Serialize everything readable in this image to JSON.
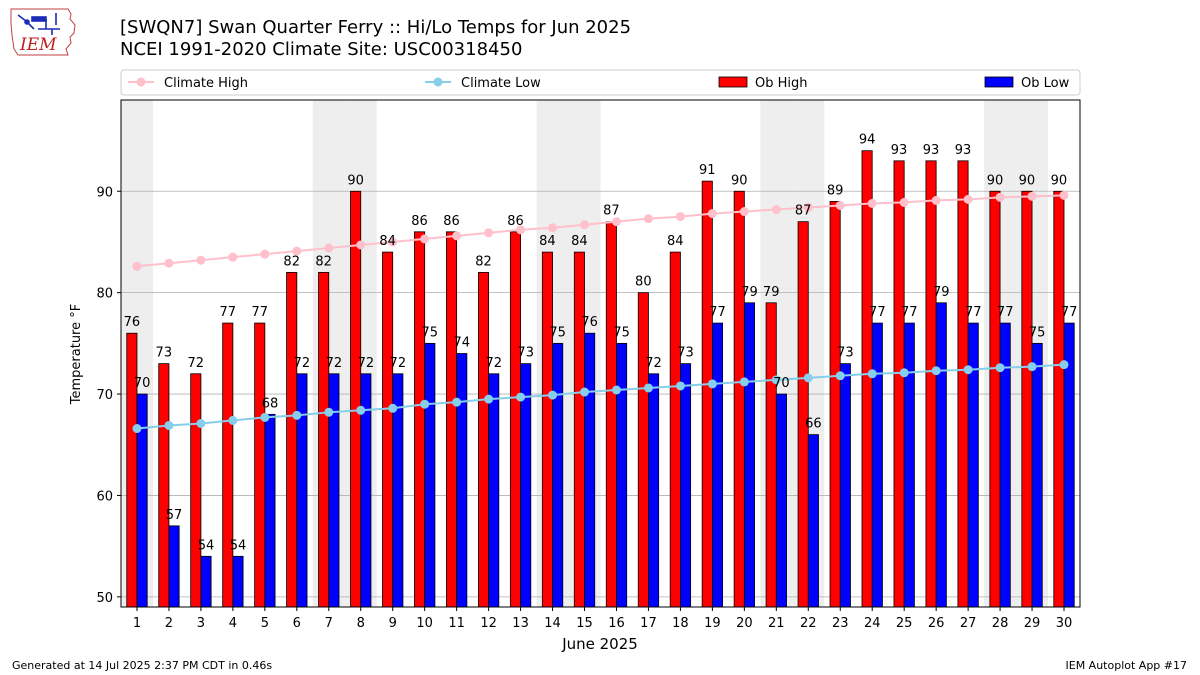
{
  "header": {
    "title_line1": "[SWQN7] Swan Quarter Ferry :: Hi/Lo Temps for Jun 2025",
    "title_line2": "NCEI 1991-2020 Climate Site: USC00318450",
    "logo_text": "IEM"
  },
  "footer": {
    "generated": "Generated at 14 Jul 2025 2:37 PM CDT in 0.46s",
    "app": "IEM Autoplot App #17"
  },
  "colors": {
    "ob_high": "#ff0000",
    "ob_low": "#0000ff",
    "climate_high": "#ffc0cb",
    "climate_low": "#87ceeb",
    "weekend_shade": "#eeeeee",
    "grid": "#b0b0b0"
  },
  "chart_data": {
    "type": "bar",
    "xlabel": "June 2025",
    "ylabel": "Temperature °F",
    "ylim": [
      49,
      99
    ],
    "yticks": [
      50,
      60,
      70,
      80,
      90
    ],
    "grid": true,
    "legend_position": "top",
    "categories": [
      "1",
      "2",
      "3",
      "4",
      "5",
      "6",
      "7",
      "8",
      "9",
      "10",
      "11",
      "12",
      "13",
      "14",
      "15",
      "16",
      "17",
      "18",
      "19",
      "20",
      "21",
      "22",
      "23",
      "24",
      "25",
      "26",
      "27",
      "28",
      "29",
      "30"
    ],
    "shaded_days": [
      1,
      7,
      8,
      14,
      15,
      21,
      22,
      28,
      29
    ],
    "series": [
      {
        "name": "Climate High",
        "kind": "line",
        "values": [
          82.6,
          82.9,
          83.2,
          83.5,
          83.8,
          84.1,
          84.4,
          84.7,
          85.0,
          85.3,
          85.6,
          85.9,
          86.2,
          86.4,
          86.7,
          87.0,
          87.3,
          87.5,
          87.8,
          88.0,
          88.2,
          88.4,
          88.6,
          88.8,
          88.9,
          89.1,
          89.2,
          89.4,
          89.5,
          89.6
        ]
      },
      {
        "name": "Climate Low",
        "kind": "line",
        "values": [
          66.6,
          66.9,
          67.1,
          67.4,
          67.7,
          67.9,
          68.2,
          68.4,
          68.6,
          69.0,
          69.2,
          69.5,
          69.7,
          69.9,
          70.2,
          70.4,
          70.6,
          70.8,
          71.0,
          71.2,
          71.4,
          71.6,
          71.8,
          72.0,
          72.1,
          72.3,
          72.4,
          72.6,
          72.7,
          72.9
        ]
      },
      {
        "name": "Ob High",
        "kind": "bar",
        "values": [
          76,
          73,
          72,
          77,
          77,
          82,
          82,
          90,
          84,
          86,
          86,
          82,
          86,
          84,
          84,
          87,
          80,
          84,
          91,
          90,
          79,
          87,
          89,
          94,
          93,
          93,
          93,
          90,
          90,
          90
        ]
      },
      {
        "name": "Ob Low",
        "kind": "bar",
        "values": [
          70,
          57,
          54,
          54,
          68,
          72,
          72,
          72,
          72,
          75,
          74,
          72,
          73,
          75,
          76,
          75,
          72,
          73,
          77,
          79,
          70,
          66,
          73,
          77,
          77,
          79,
          77,
          77,
          75,
          77
        ]
      }
    ]
  }
}
